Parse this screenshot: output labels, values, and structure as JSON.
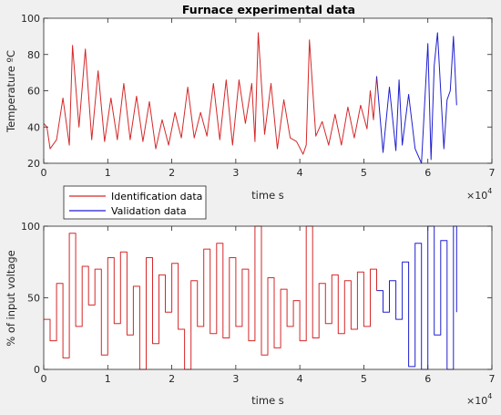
{
  "figure_background": "#f0f0f0",
  "colors": {
    "identification": "#d62728",
    "validation": "#1f1fd0",
    "axis": "#262626",
    "plot_bg": "#ffffff"
  },
  "chart_data": [
    {
      "type": "line",
      "title": "Furnace experimental data",
      "xlabel": "time s",
      "ylabel": "Temperature ºC",
      "x_exponent": "×10",
      "x_exponent_power": "4",
      "xlim": [
        0,
        7
      ],
      "ylim": [
        20,
        100
      ],
      "xticks": [
        "0",
        "1",
        "2",
        "3",
        "4",
        "5",
        "6",
        "7"
      ],
      "yticks": [
        "20",
        "40",
        "60",
        "80",
        "100"
      ],
      "xtick_values": [
        0,
        1,
        2,
        3,
        4,
        5,
        6,
        7
      ],
      "ytick_values": [
        20,
        40,
        60,
        80,
        100
      ],
      "grid": false,
      "series": [
        {
          "name": "Identification data",
          "color": "#d62728",
          "x": [
            0,
            0.05,
            0.1,
            0.2,
            0.3,
            0.4,
            0.45,
            0.55,
            0.65,
            0.75,
            0.85,
            0.95,
            1.05,
            1.15,
            1.25,
            1.35,
            1.45,
            1.55,
            1.65,
            1.75,
            1.85,
            1.95,
            2.05,
            2.15,
            2.25,
            2.35,
            2.45,
            2.55,
            2.65,
            2.75,
            2.85,
            2.95,
            3.05,
            3.15,
            3.25,
            3.3,
            3.35,
            3.45,
            3.55,
            3.65,
            3.75,
            3.85,
            3.95,
            4.05,
            4.1,
            4.15,
            4.25,
            4.35,
            4.45,
            4.55,
            4.65,
            4.75,
            4.85,
            4.95,
            5.05,
            5.1,
            5.15,
            5.2
          ],
          "y": [
            42,
            40,
            28,
            33,
            56,
            30,
            85,
            40,
            83,
            33,
            71,
            32,
            56,
            33,
            64,
            33,
            57,
            32,
            54,
            28,
            44,
            30,
            48,
            34,
            62,
            34,
            48,
            35,
            64,
            33,
            66,
            30,
            66,
            42,
            64,
            32,
            92,
            36,
            64,
            28,
            55,
            34,
            32,
            25,
            30,
            88,
            35,
            43,
            30,
            47,
            30,
            51,
            34,
            52,
            39,
            60,
            44,
            68
          ]
        },
        {
          "name": "Validation data",
          "color": "#1f1fd0",
          "x": [
            5.2,
            5.3,
            5.4,
            5.5,
            5.55,
            5.6,
            5.7,
            5.8,
            5.9,
            6.0,
            6.05,
            6.1,
            6.15,
            6.25,
            6.3,
            6.35,
            6.4,
            6.45
          ],
          "y": [
            68,
            26,
            62,
            27,
            66,
            30,
            58,
            28,
            20,
            86,
            22,
            74,
            92,
            28,
            55,
            60,
            90,
            52
          ]
        }
      ]
    },
    {
      "type": "line",
      "title": "",
      "xlabel": "time s",
      "ylabel": "% of input voltage",
      "x_exponent": "×10",
      "x_exponent_power": "4",
      "xlim": [
        0,
        7
      ],
      "ylim": [
        0,
        100
      ],
      "xticks": [
        "0",
        "1",
        "2",
        "3",
        "4",
        "5",
        "6",
        "7"
      ],
      "yticks": [
        "0",
        "50",
        "100"
      ],
      "xtick_values": [
        0,
        1,
        2,
        3,
        4,
        5,
        6,
        7
      ],
      "ytick_values": [
        0,
        50,
        100
      ],
      "grid": false,
      "step": true,
      "series": [
        {
          "name": "Identification data",
          "color": "#d62728",
          "x": [
            0,
            0.1,
            0.2,
            0.3,
            0.4,
            0.5,
            0.6,
            0.7,
            0.8,
            0.9,
            1.0,
            1.1,
            1.2,
            1.3,
            1.4,
            1.5,
            1.6,
            1.7,
            1.8,
            1.9,
            2.0,
            2.1,
            2.2,
            2.3,
            2.4,
            2.5,
            2.6,
            2.7,
            2.8,
            2.9,
            3.0,
            3.1,
            3.2,
            3.3,
            3.4,
            3.5,
            3.6,
            3.7,
            3.8,
            3.9,
            4.0,
            4.1,
            4.2,
            4.3,
            4.4,
            4.5,
            4.6,
            4.7,
            4.8,
            4.9,
            5.0,
            5.1,
            5.2
          ],
          "y": [
            35,
            20,
            60,
            8,
            95,
            30,
            72,
            45,
            70,
            10,
            78,
            32,
            82,
            24,
            58,
            0,
            78,
            18,
            66,
            40,
            74,
            28,
            0,
            62,
            30,
            84,
            25,
            88,
            22,
            78,
            30,
            70,
            20,
            100,
            10,
            64,
            15,
            56,
            30,
            48,
            20,
            100,
            22,
            60,
            32,
            66,
            25,
            62,
            28,
            68,
            30,
            70,
            55
          ]
        },
        {
          "name": "Validation data",
          "color": "#1f1fd0",
          "x": [
            5.2,
            5.3,
            5.4,
            5.5,
            5.6,
            5.7,
            5.8,
            5.9,
            6.0,
            6.1,
            6.2,
            6.3,
            6.4,
            6.45
          ],
          "y": [
            55,
            40,
            62,
            35,
            75,
            2,
            88,
            0,
            100,
            24,
            90,
            0,
            100,
            40
          ]
        }
      ]
    }
  ],
  "legend": {
    "placement": "between-axes-left",
    "entries": [
      "Identification data",
      "Validation data"
    ]
  }
}
